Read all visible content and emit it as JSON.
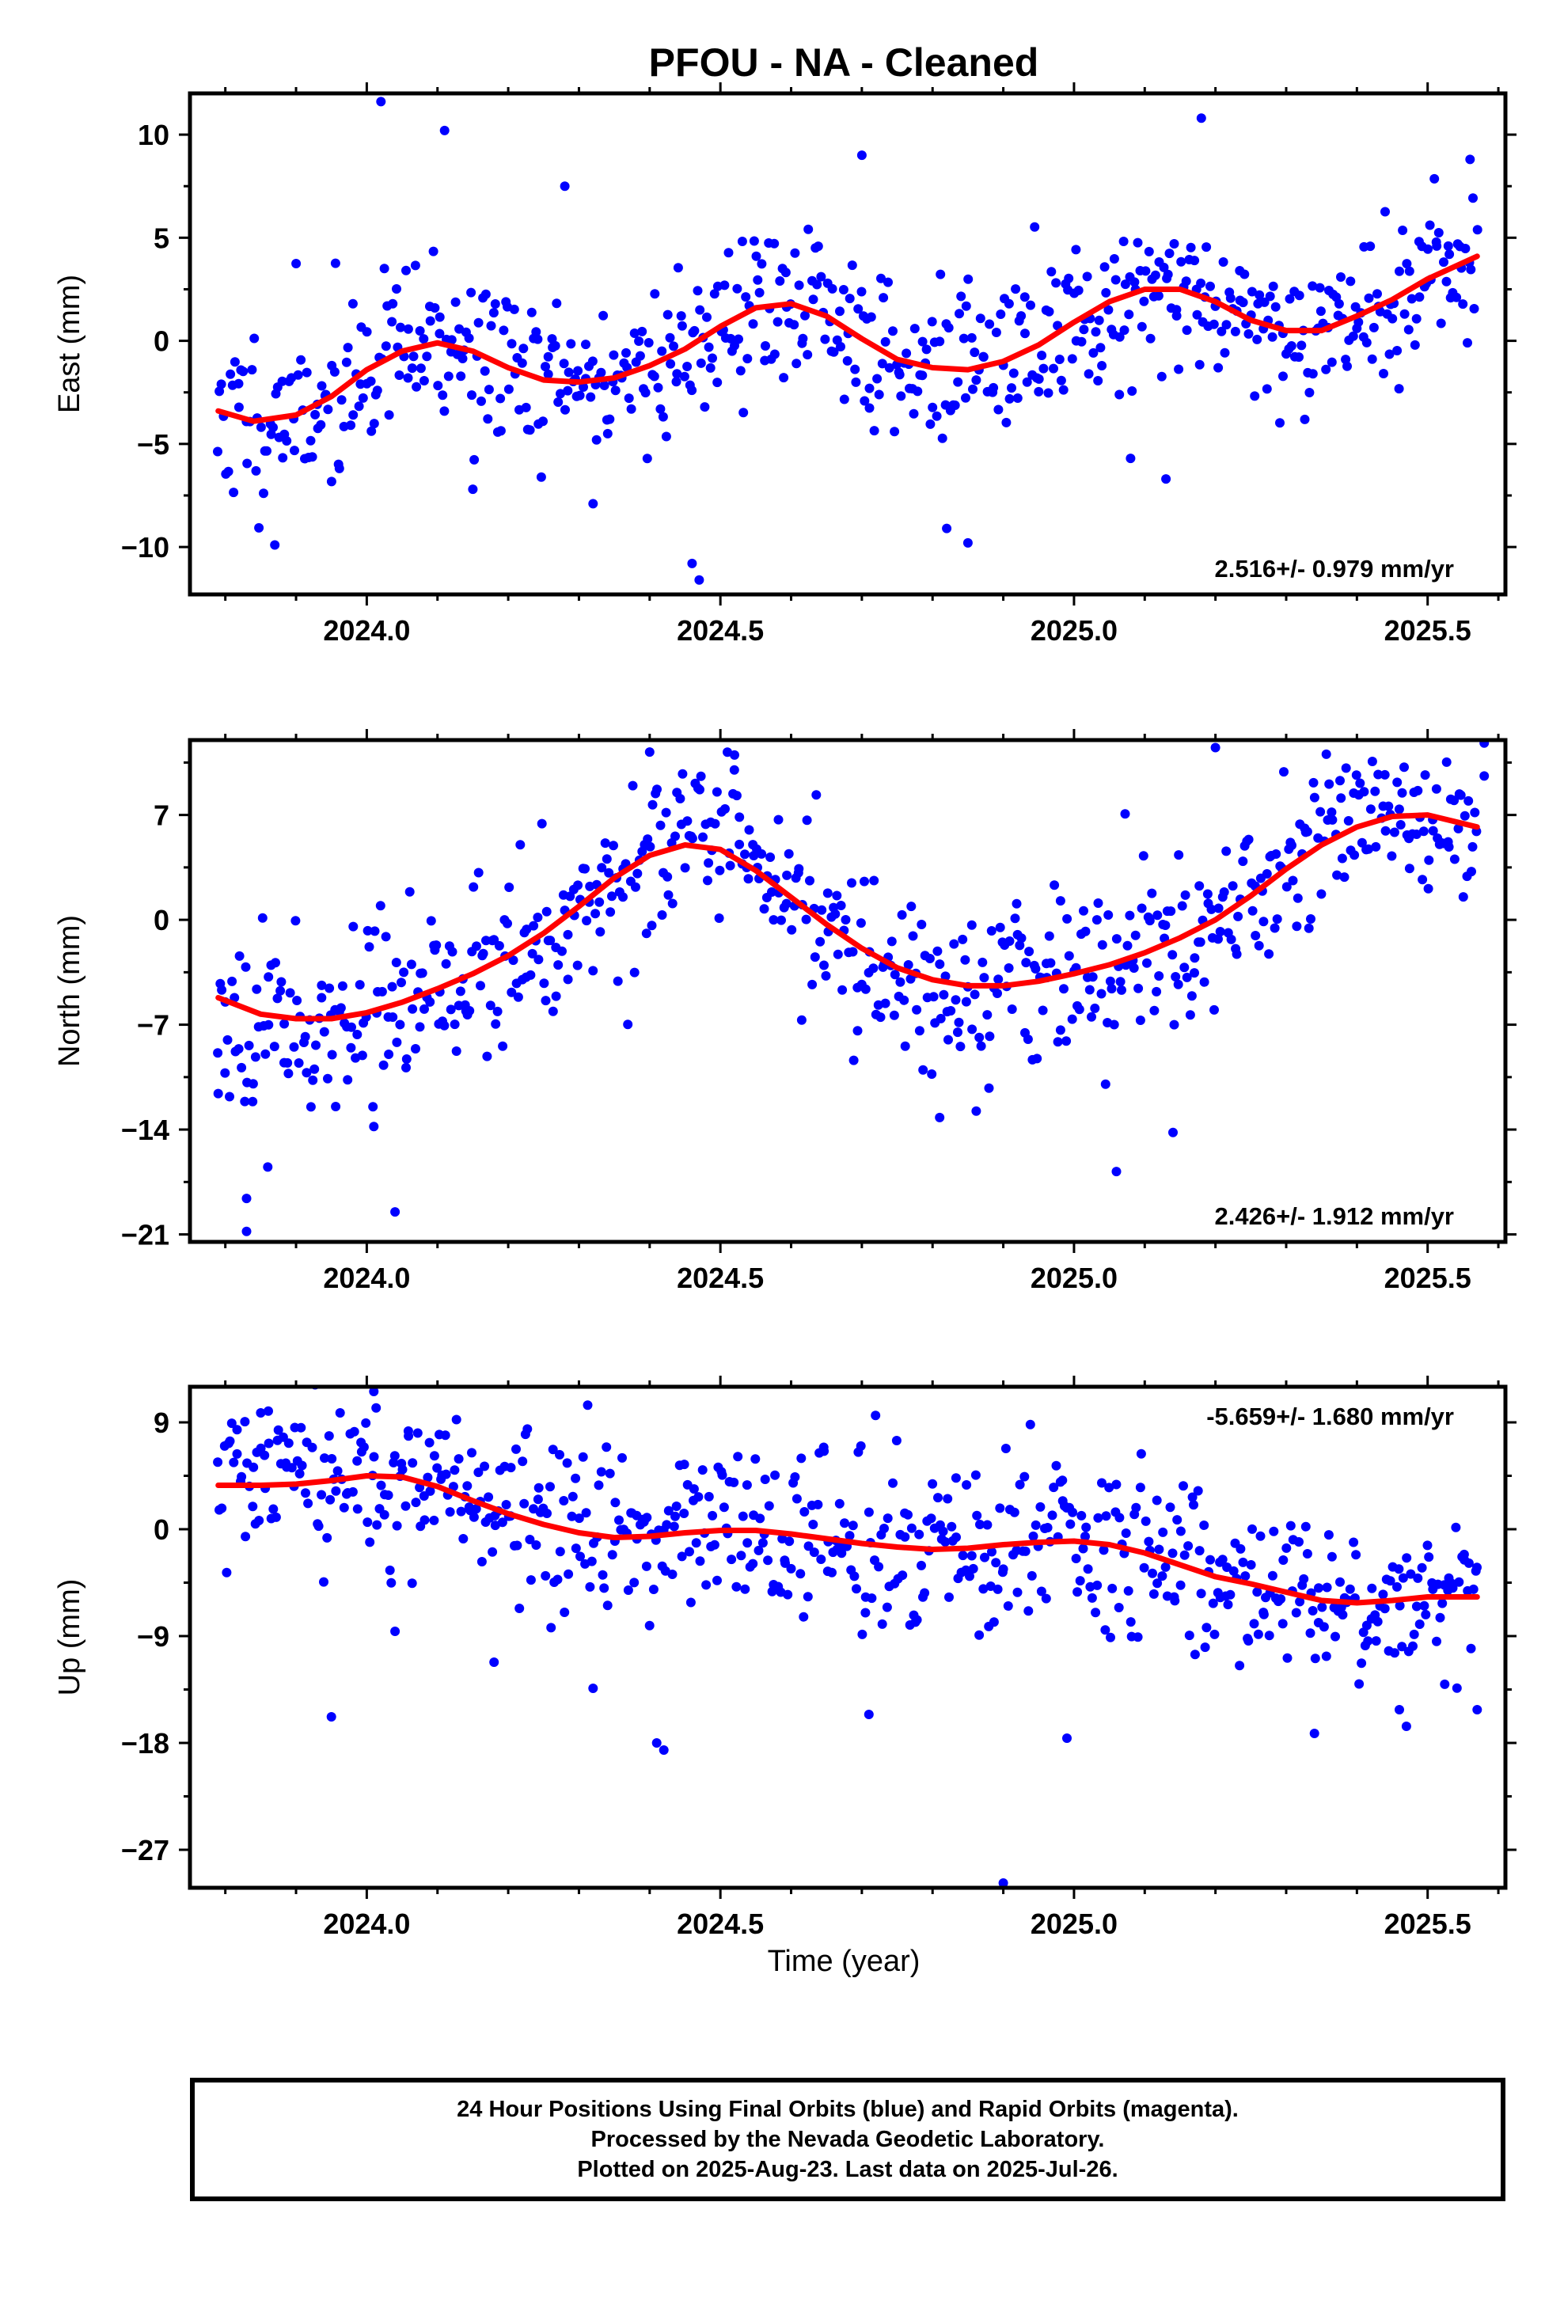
{
  "title": "PFOU  - NA - Cleaned",
  "x_axis_label": "Time (year)",
  "caption_lines": [
    "24 Hour Positions Using Final Orbits (blue) and Rapid Orbits (magenta).",
    "Processed by the Nevada Geodetic Laboratory.",
    "Plotted on 2025-Aug-23. Last data on 2025-Jul-26."
  ],
  "colors": {
    "final_orbits": "#0000ff",
    "model_fit": "#ff0000",
    "frame": "#000000"
  },
  "chart_data": [
    {
      "type": "scatter",
      "name": "east",
      "ylabel": "East (mm)",
      "rate_text": "2.516+/- 0.979 mm/yr",
      "rate_position": "bottom-right",
      "xlim": [
        2023.75,
        2025.61
      ],
      "ylim": [
        -12.3,
        12.0
      ],
      "x_ticks": [
        2024.0,
        2024.5,
        2025.0,
        2025.5
      ],
      "x_tick_labels": [
        "2024.0",
        "2024.5",
        "2025.0",
        "2025.5"
      ],
      "y_ticks": [
        10,
        5,
        0,
        -5,
        -10
      ],
      "y_tick_labels": [
        "10",
        "5",
        "0",
        "−5",
        "−10"
      ],
      "scatter_seed": 11,
      "model": {
        "x": [
          2023.79,
          2023.84,
          2023.9,
          2023.95,
          2024.0,
          2024.05,
          2024.1,
          2024.15,
          2024.2,
          2024.25,
          2024.3,
          2024.35,
          2024.4,
          2024.45,
          2024.5,
          2024.55,
          2024.6,
          2024.65,
          2024.7,
          2024.75,
          2024.8,
          2024.85,
          2024.9,
          2024.95,
          2025.0,
          2025.05,
          2025.1,
          2025.15,
          2025.2,
          2025.25,
          2025.3,
          2025.35,
          2025.4,
          2025.45,
          2025.5,
          2025.57
        ],
        "y": [
          -3.4,
          -3.9,
          -3.6,
          -2.7,
          -1.4,
          -0.5,
          -0.1,
          -0.5,
          -1.3,
          -1.9,
          -2.0,
          -1.8,
          -1.2,
          -0.4,
          0.7,
          1.6,
          1.8,
          1.2,
          0.1,
          -0.9,
          -1.3,
          -1.4,
          -1.0,
          -0.2,
          0.9,
          1.9,
          2.5,
          2.5,
          1.9,
          1.0,
          0.5,
          0.5,
          1.2,
          2.0,
          3.0,
          4.1
        ]
      },
      "outliers": [
        {
          "x": 2024.02,
          "y": 11.6
        },
        {
          "x": 2024.11,
          "y": 10.2
        },
        {
          "x": 2024.28,
          "y": 7.5
        },
        {
          "x": 2024.7,
          "y": 9.0
        },
        {
          "x": 2025.18,
          "y": 10.8
        },
        {
          "x": 2025.56,
          "y": 8.8
        },
        {
          "x": 2023.87,
          "y": -9.9
        },
        {
          "x": 2024.46,
          "y": -10.8
        },
        {
          "x": 2024.47,
          "y": -11.6
        },
        {
          "x": 2024.85,
          "y": -9.8
        },
        {
          "x": 2024.82,
          "y": -9.1
        },
        {
          "x": 2024.32,
          "y": -7.9
        },
        {
          "x": 2024.15,
          "y": -7.2
        },
        {
          "x": 2025.13,
          "y": -6.7
        },
        {
          "x": 2025.08,
          "y": -5.7
        }
      ]
    },
    {
      "type": "scatter",
      "name": "north",
      "ylabel": "North (mm)",
      "rate_text": "2.426+/- 1.912 mm/yr",
      "rate_position": "bottom-right",
      "xlim": [
        2023.75,
        2025.61
      ],
      "ylim": [
        -21.5,
        12.0
      ],
      "x_ticks": [
        2024.0,
        2024.5,
        2025.0,
        2025.5
      ],
      "x_tick_labels": [
        "2024.0",
        "2024.5",
        "2025.0",
        "2025.5"
      ],
      "y_ticks": [
        7,
        0,
        -7,
        -14,
        -21
      ],
      "y_tick_labels": [
        "7",
        "0",
        "−7",
        "−14",
        "−21"
      ],
      "scatter_seed": 23,
      "model": {
        "x": [
          2023.79,
          2023.85,
          2023.9,
          2023.95,
          2024.0,
          2024.05,
          2024.1,
          2024.15,
          2024.2,
          2024.25,
          2024.3,
          2024.35,
          2024.4,
          2024.45,
          2024.5,
          2024.55,
          2024.6,
          2024.65,
          2024.7,
          2024.75,
          2024.8,
          2024.85,
          2024.9,
          2024.95,
          2025.0,
          2025.05,
          2025.1,
          2025.15,
          2025.2,
          2025.25,
          2025.3,
          2025.35,
          2025.4,
          2025.45,
          2025.5,
          2025.57
        ],
        "y": [
          -5.2,
          -6.3,
          -6.6,
          -6.6,
          -6.2,
          -5.5,
          -4.6,
          -3.6,
          -2.4,
          -0.9,
          0.9,
          2.8,
          4.3,
          5.0,
          4.7,
          3.3,
          1.5,
          -0.3,
          -1.9,
          -3.2,
          -4.0,
          -4.4,
          -4.4,
          -4.1,
          -3.6,
          -3.0,
          -2.2,
          -1.2,
          0.0,
          1.6,
          3.4,
          5.0,
          6.2,
          6.9,
          7.0,
          6.2
        ]
      },
      "outliers": [
        {
          "x": 2023.83,
          "y": -18.6
        },
        {
          "x": 2023.83,
          "y": -20.8
        },
        {
          "x": 2023.86,
          "y": -16.5
        },
        {
          "x": 2024.04,
          "y": -19.5
        },
        {
          "x": 2025.06,
          "y": -16.8
        },
        {
          "x": 2025.14,
          "y": -14.2
        },
        {
          "x": 2024.81,
          "y": -13.2
        },
        {
          "x": 2024.4,
          "y": 11.2
        },
        {
          "x": 2024.52,
          "y": 11.0
        },
        {
          "x": 2025.2,
          "y": 11.5
        },
        {
          "x": 2025.58,
          "y": 11.8
        },
        {
          "x": 2025.58,
          "y": 9.6
        },
        {
          "x": 2023.79,
          "y": -11.6
        },
        {
          "x": 2024.01,
          "y": -13.8
        }
      ]
    },
    {
      "type": "scatter",
      "name": "up",
      "ylabel": "Up (mm)",
      "rate_text": "-5.659+/- 1.680 mm/yr",
      "rate_position": "top-right",
      "xlim": [
        2023.75,
        2025.61
      ],
      "ylim": [
        -30.2,
        12.0
      ],
      "x_ticks": [
        2024.0,
        2024.5,
        2025.0,
        2025.5
      ],
      "x_tick_labels": [
        "2024.0",
        "2024.5",
        "2025.0",
        "2025.5"
      ],
      "y_ticks": [
        9,
        0,
        -9,
        -18,
        -27
      ],
      "y_tick_labels": [
        "9",
        "0",
        "−9",
        "−18",
        "−27"
      ],
      "scatter_seed": 37,
      "model": {
        "x": [
          2023.79,
          2023.85,
          2023.9,
          2023.95,
          2024.0,
          2024.05,
          2024.1,
          2024.15,
          2024.2,
          2024.25,
          2024.3,
          2024.35,
          2024.4,
          2024.45,
          2024.5,
          2024.55,
          2024.6,
          2024.65,
          2024.7,
          2024.75,
          2024.8,
          2024.85,
          2024.9,
          2024.95,
          2025.0,
          2025.05,
          2025.1,
          2025.15,
          2025.2,
          2025.25,
          2025.3,
          2025.35,
          2025.4,
          2025.45,
          2025.5,
          2025.57
        ],
        "y": [
          3.7,
          3.7,
          3.8,
          4.1,
          4.5,
          4.4,
          3.6,
          2.4,
          1.3,
          0.4,
          -0.3,
          -0.7,
          -0.6,
          -0.3,
          -0.1,
          -0.1,
          -0.4,
          -0.8,
          -1.2,
          -1.5,
          -1.7,
          -1.6,
          -1.3,
          -1.1,
          -1.0,
          -1.3,
          -2.0,
          -3.0,
          -4.0,
          -4.6,
          -5.3,
          -6.0,
          -6.2,
          -6.0,
          -5.7,
          -5.7
        ]
      },
      "outliers": [
        {
          "x": 2023.95,
          "y": -15.8
        },
        {
          "x": 2024.18,
          "y": -11.2
        },
        {
          "x": 2024.32,
          "y": -13.4
        },
        {
          "x": 2024.41,
          "y": -18.0
        },
        {
          "x": 2024.42,
          "y": -18.6
        },
        {
          "x": 2024.71,
          "y": -15.6
        },
        {
          "x": 2024.9,
          "y": -29.8
        },
        {
          "x": 2024.99,
          "y": -17.6
        },
        {
          "x": 2025.34,
          "y": -17.2
        },
        {
          "x": 2025.46,
          "y": -15.2
        },
        {
          "x": 2025.47,
          "y": -16.6
        },
        {
          "x": 2025.57,
          "y": -15.2
        },
        {
          "x": 2024.01,
          "y": 11.6
        },
        {
          "x": 2023.85,
          "y": 9.8
        },
        {
          "x": 2024.04,
          "y": -8.6
        }
      ]
    }
  ]
}
